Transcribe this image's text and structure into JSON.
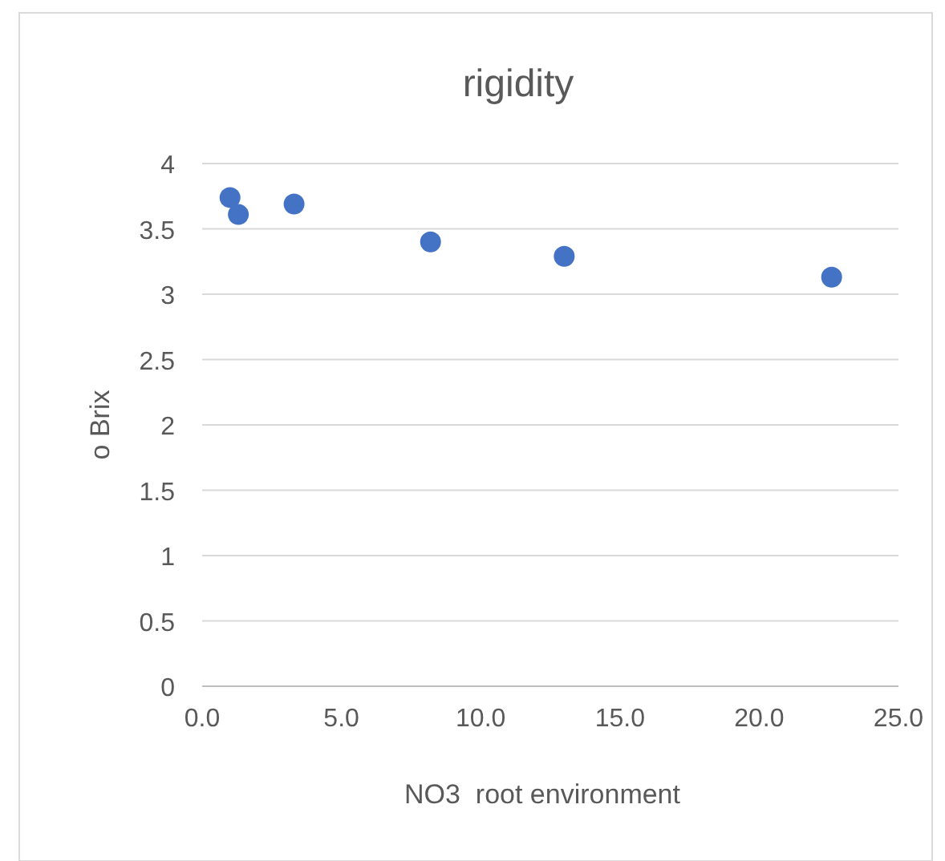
{
  "chart_data": {
    "type": "scatter",
    "title": "rigidity",
    "xlabel": "NO3  root environment",
    "ylabel": "o Brix",
    "x": [
      1.0,
      1.3,
      3.3,
      8.2,
      13.0,
      22.6
    ],
    "values": [
      3.74,
      3.61,
      3.69,
      3.4,
      3.29,
      3.13
    ],
    "color": "#4472c4",
    "marker": "circle",
    "xlim": [
      0,
      25
    ],
    "xticks": [
      {
        "value": 0,
        "label": "0.0"
      },
      {
        "value": 5,
        "label": "5.0"
      },
      {
        "value": 10,
        "label": "10.0"
      },
      {
        "value": 15,
        "label": "15.0"
      },
      {
        "value": 20,
        "label": "20.0"
      },
      {
        "value": 25,
        "label": "25.0"
      }
    ],
    "ylim": [
      0,
      4
    ],
    "yticks": [
      0,
      {
        "value": 0.5,
        "label": "0.5"
      },
      1,
      {
        "value": 1.5,
        "label": "1.5"
      },
      2,
      {
        "value": 2.5,
        "label": "2.5"
      },
      3,
      {
        "value": 3.5,
        "label": "3.5"
      },
      4
    ],
    "grid": "y"
  }
}
